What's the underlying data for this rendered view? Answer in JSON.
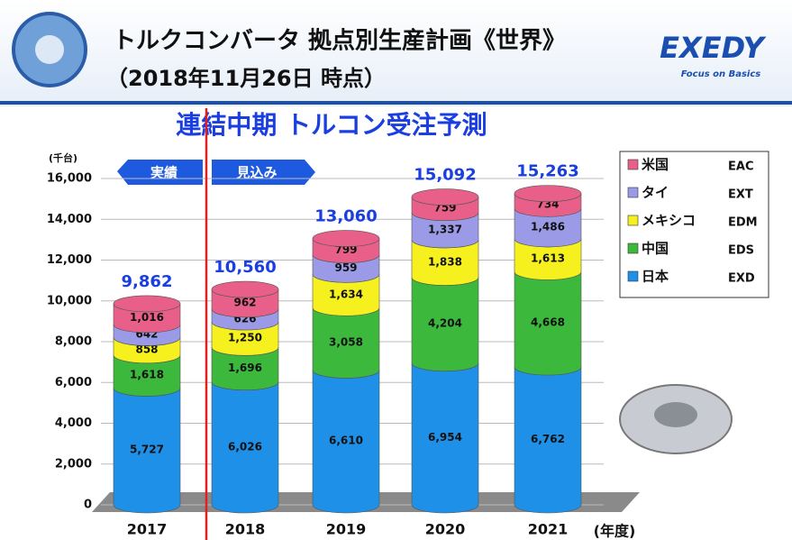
{
  "header": {
    "title": "トルクコンバータ 拠点別生産計画《世界》",
    "date": "（2018年11月26日 時点）",
    "logo": "EXEDY",
    "slogan": "Focus on Basics"
  },
  "chart_data": {
    "type": "bar",
    "stacked": true,
    "title": "連結中期 トルコン受注予測",
    "y_unit": "(千台)",
    "x_unit": "(年度)",
    "annotations": [
      "実績",
      "見込み"
    ],
    "categories": [
      "2017",
      "2018",
      "2019",
      "2020",
      "2021"
    ],
    "ylim": [
      0,
      16000
    ],
    "yticks": [
      0,
      {
        "value": 2000,
        "label": "2,000"
      },
      {
        "value": 4000,
        "label": "4,000"
      },
      {
        "value": 6000,
        "label": "6,000"
      },
      {
        "value": 8000,
        "label": "8,000"
      },
      {
        "value": 10000,
        "label": "10,000"
      },
      {
        "value": 12000,
        "label": "12,000"
      },
      {
        "value": 14000,
        "label": "14,000"
      },
      {
        "value": 16000,
        "label": "16,000"
      }
    ],
    "grid": true,
    "series": [
      {
        "name": "日本",
        "code": "EXD",
        "color": "#1e90e8",
        "values": [
          5727,
          6026,
          6610,
          6954,
          6762
        ],
        "value_labels": [
          "5,727",
          "6,026",
          "6,610",
          "6,954",
          "6,762"
        ]
      },
      {
        "name": "中国",
        "code": "EDS",
        "color": "#3cb83c",
        "values": [
          1618,
          1696,
          3058,
          4204,
          4668
        ],
        "value_labels": [
          "1,618",
          "1,696",
          "3,058",
          "4,204",
          "4,668"
        ]
      },
      {
        "name": "メキシコ",
        "code": "EDM",
        "color": "#f5f01e",
        "values": [
          858,
          1250,
          1634,
          1838,
          1613
        ],
        "value_labels": [
          "858",
          "1,250",
          "1,634",
          "1,838",
          "1,613"
        ]
      },
      {
        "name": "タイ",
        "code": "EXT",
        "color": "#9a9ae6",
        "values": [
          642,
          626,
          959,
          1337,
          1486
        ],
        "value_labels": [
          "642",
          "626",
          "959",
          "1,337",
          "1,486"
        ]
      },
      {
        "name": "米国",
        "code": "EAC",
        "color": "#e8608a",
        "values": [
          1016,
          962,
          799,
          759,
          734
        ],
        "value_labels": [
          "1,016",
          "962",
          "799",
          "759",
          "734"
        ]
      }
    ],
    "totals": {
      "values": [
        9862,
        10560,
        13060,
        15092,
        15263
      ],
      "value_labels": [
        "9,862",
        "10,560",
        "13,060",
        "15,092",
        "15,263"
      ]
    }
  }
}
